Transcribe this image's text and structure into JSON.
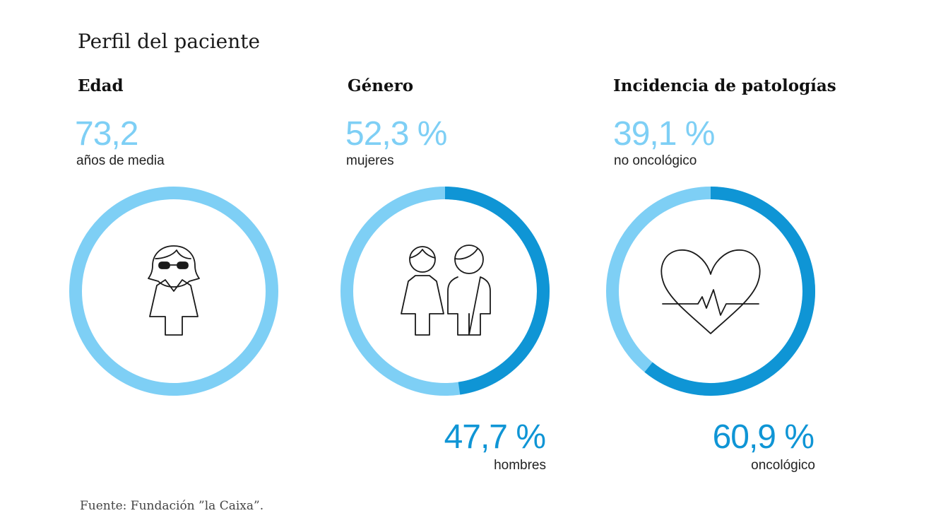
{
  "title": "Perfil del paciente",
  "footer": "Fuente: Fundación ”la Caixa”.",
  "colors": {
    "light": "#7ecff5",
    "dark": "#0f95d5",
    "text": "#1a1a1a"
  },
  "panels": [
    {
      "heading": "Edad",
      "value": "73,2",
      "value_label": "años de media",
      "icon": "woman-icon"
    },
    {
      "heading": "Género",
      "value": "52,3 %",
      "value_label": "mujeres",
      "second_value": "47,7 %",
      "second_label": "hombres",
      "icon": "couple-icon"
    },
    {
      "heading": "Incidencia de patologías",
      "value": "39,1 %",
      "value_label": "no oncológico",
      "second_value": "60,9 %",
      "second_label": "oncológico",
      "icon": "heart-pulse-icon"
    }
  ],
  "chart_data": [
    {
      "type": "pie",
      "title": "Edad",
      "series": [
        {
          "name": "años de media",
          "values": [
            73.2
          ]
        }
      ]
    },
    {
      "type": "pie",
      "title": "Género",
      "categories": [
        "mujeres",
        "hombres"
      ],
      "values": [
        52.3,
        47.7
      ]
    },
    {
      "type": "pie",
      "title": "Incidencia de patologías",
      "categories": [
        "no oncológico",
        "oncológico"
      ],
      "values": [
        39.1,
        60.9
      ]
    }
  ]
}
